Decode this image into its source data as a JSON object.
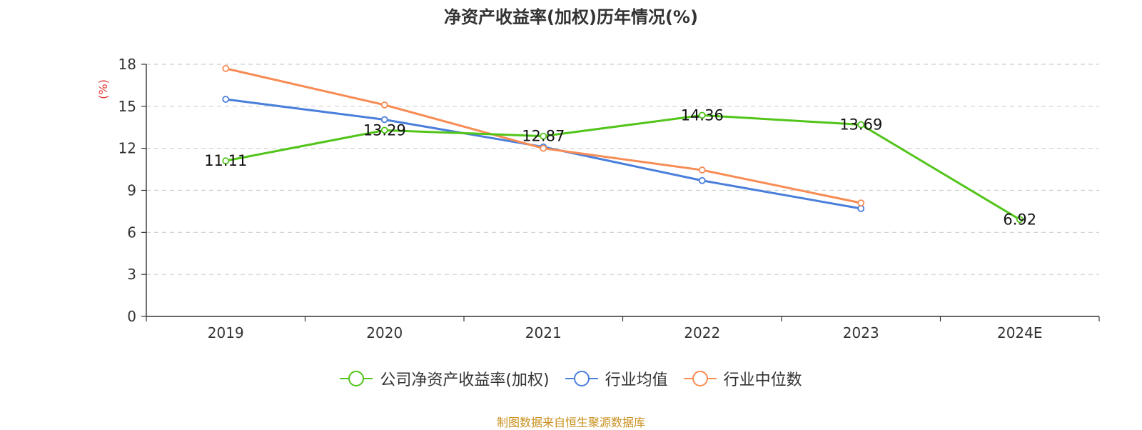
{
  "chart_data": {
    "type": "line",
    "title": "净资产收益率(加权)历年情况(%)",
    "xlabel": "",
    "ylabel": "(%)",
    "categories": [
      "2019",
      "2020",
      "2021",
      "2022",
      "2023",
      "2024E"
    ],
    "ylim": [
      0,
      18
    ],
    "yticks": [
      0,
      3,
      6,
      9,
      12,
      15,
      18
    ],
    "grid": true,
    "legend_position": "bottom-center",
    "series": [
      {
        "name": "公司净资产收益率(加权)",
        "color": "#52c41a",
        "values": [
          11.11,
          13.29,
          12.87,
          14.36,
          13.69,
          6.92
        ],
        "labels": [
          "11.11",
          "13.29",
          "12.87",
          "14.36",
          "13.69",
          "6.92"
        ]
      },
      {
        "name": "行业均值",
        "color": "#4a7fdb",
        "values": [
          15.5,
          14.05,
          12.1,
          9.7,
          7.7,
          null
        ]
      },
      {
        "name": "行业中位数",
        "color": "#f78c54",
        "values": [
          17.7,
          15.1,
          12.0,
          10.45,
          8.1,
          null
        ]
      }
    ]
  },
  "footer": {
    "source": "制图数据来自恒生聚源数据库"
  }
}
